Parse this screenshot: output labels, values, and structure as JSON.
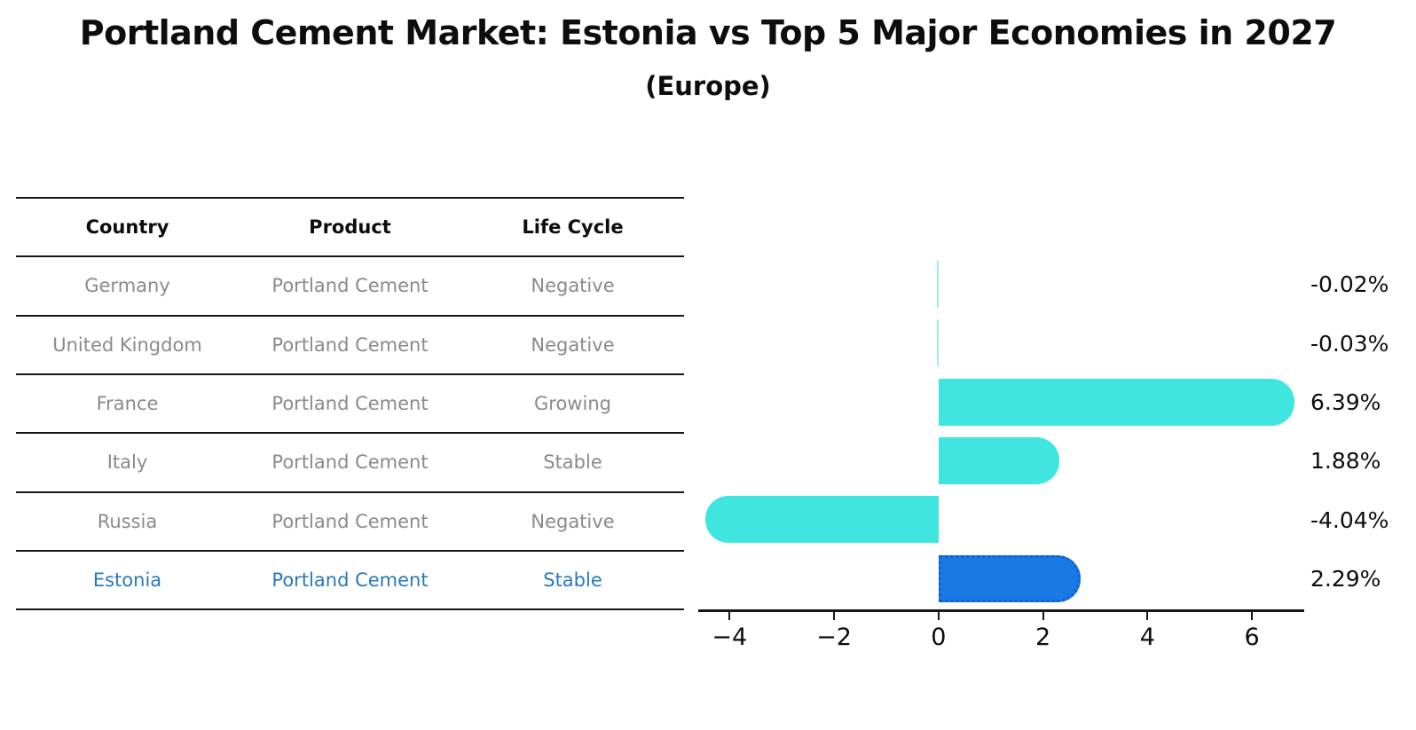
{
  "header": {
    "title": "Portland Cement Market: Estonia vs Top 5 Major Economies in 2027",
    "subtitle": "(Europe)"
  },
  "table": {
    "headers": [
      "Country",
      "Product",
      "Life Cycle"
    ],
    "rows": [
      {
        "country": "Germany",
        "product": "Portland Cement",
        "life_cycle": "Negative",
        "highlighted": false
      },
      {
        "country": "United Kingdom",
        "product": "Portland Cement",
        "life_cycle": "Negative",
        "highlighted": false
      },
      {
        "country": "France",
        "product": "Portland Cement",
        "life_cycle": "Growing",
        "highlighted": false
      },
      {
        "country": "Italy",
        "product": "Portland Cement",
        "life_cycle": "Stable",
        "highlighted": false
      },
      {
        "country": "Russia",
        "product": "Portland Cement",
        "life_cycle": "Negative",
        "highlighted": false
      },
      {
        "country": "Estonia",
        "product": "Portland Cement",
        "life_cycle": "Stable",
        "highlighted": true
      }
    ]
  },
  "chart_data": {
    "type": "bar",
    "orientation": "horizontal",
    "title": "Portland Cement Market: Estonia vs Top 5 Major Economies in 2027 (Europe)",
    "categories": [
      "Germany",
      "United Kingdom",
      "France",
      "Italy",
      "Russia",
      "Estonia"
    ],
    "values": [
      -0.02,
      -0.03,
      6.39,
      1.88,
      -4.04,
      2.29
    ],
    "value_labels": [
      "-0.02%",
      "-0.03%",
      "6.39%",
      "1.88%",
      "-4.04%",
      "2.29%"
    ],
    "xticks": [
      -4,
      -2,
      0,
      2,
      4,
      6
    ],
    "xtick_labels": [
      "−4",
      "−2",
      "0",
      "2",
      "4",
      "6"
    ],
    "xlim": [
      -4.6,
      7.0
    ],
    "grid": false,
    "legend_position": "none",
    "bar_color": "#40e5df",
    "highlight_bar_color": "#1b79e6",
    "highlight_border_color": "#0f5fd0",
    "highlight_index": 5
  },
  "colors": {
    "row_text": "#8a8a8a",
    "highlight_text": "#2878be",
    "axis_line": "#161616",
    "label_text": "#0d0d0d"
  }
}
